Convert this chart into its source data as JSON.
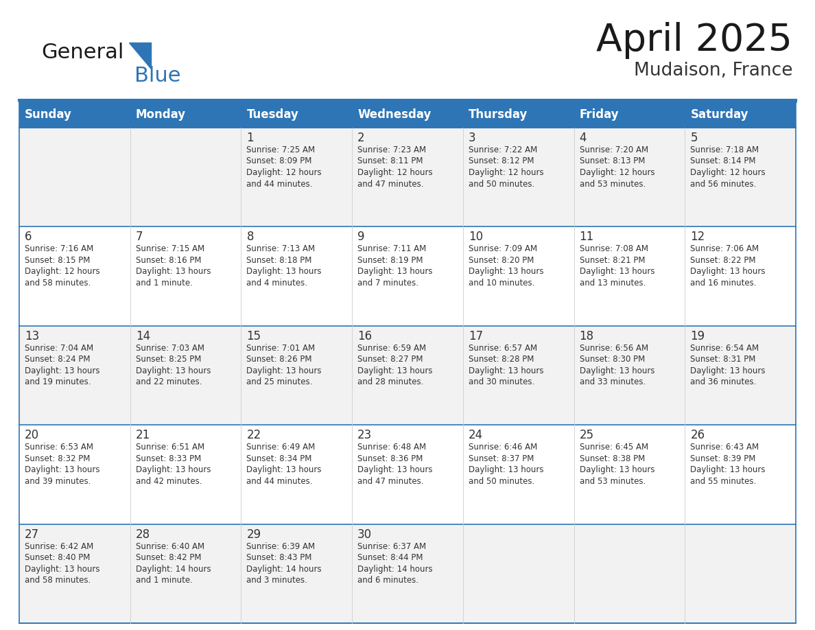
{
  "title": "April 2025",
  "subtitle": "Mudaison, France",
  "header_bg_color": "#2E75B6",
  "header_text_color": "#FFFFFF",
  "row_bg_even": "#F2F2F2",
  "row_bg_odd": "#FFFFFF",
  "border_color": "#2E75B6",
  "cell_border_color": "#CCCCCC",
  "day_headers": [
    "Sunday",
    "Monday",
    "Tuesday",
    "Wednesday",
    "Thursday",
    "Friday",
    "Saturday"
  ],
  "cell_text_color": "#333333",
  "day_num_color": "#333333",
  "logo_text_color": "#1a1a1a",
  "logo_blue_color": "#2E75B6",
  "weeks": [
    [
      {
        "day": "",
        "info": ""
      },
      {
        "day": "",
        "info": ""
      },
      {
        "day": "1",
        "info": "Sunrise: 7:25 AM\nSunset: 8:09 PM\nDaylight: 12 hours\nand 44 minutes."
      },
      {
        "day": "2",
        "info": "Sunrise: 7:23 AM\nSunset: 8:11 PM\nDaylight: 12 hours\nand 47 minutes."
      },
      {
        "day": "3",
        "info": "Sunrise: 7:22 AM\nSunset: 8:12 PM\nDaylight: 12 hours\nand 50 minutes."
      },
      {
        "day": "4",
        "info": "Sunrise: 7:20 AM\nSunset: 8:13 PM\nDaylight: 12 hours\nand 53 minutes."
      },
      {
        "day": "5",
        "info": "Sunrise: 7:18 AM\nSunset: 8:14 PM\nDaylight: 12 hours\nand 56 minutes."
      }
    ],
    [
      {
        "day": "6",
        "info": "Sunrise: 7:16 AM\nSunset: 8:15 PM\nDaylight: 12 hours\nand 58 minutes."
      },
      {
        "day": "7",
        "info": "Sunrise: 7:15 AM\nSunset: 8:16 PM\nDaylight: 13 hours\nand 1 minute."
      },
      {
        "day": "8",
        "info": "Sunrise: 7:13 AM\nSunset: 8:18 PM\nDaylight: 13 hours\nand 4 minutes."
      },
      {
        "day": "9",
        "info": "Sunrise: 7:11 AM\nSunset: 8:19 PM\nDaylight: 13 hours\nand 7 minutes."
      },
      {
        "day": "10",
        "info": "Sunrise: 7:09 AM\nSunset: 8:20 PM\nDaylight: 13 hours\nand 10 minutes."
      },
      {
        "day": "11",
        "info": "Sunrise: 7:08 AM\nSunset: 8:21 PM\nDaylight: 13 hours\nand 13 minutes."
      },
      {
        "day": "12",
        "info": "Sunrise: 7:06 AM\nSunset: 8:22 PM\nDaylight: 13 hours\nand 16 minutes."
      }
    ],
    [
      {
        "day": "13",
        "info": "Sunrise: 7:04 AM\nSunset: 8:24 PM\nDaylight: 13 hours\nand 19 minutes."
      },
      {
        "day": "14",
        "info": "Sunrise: 7:03 AM\nSunset: 8:25 PM\nDaylight: 13 hours\nand 22 minutes."
      },
      {
        "day": "15",
        "info": "Sunrise: 7:01 AM\nSunset: 8:26 PM\nDaylight: 13 hours\nand 25 minutes."
      },
      {
        "day": "16",
        "info": "Sunrise: 6:59 AM\nSunset: 8:27 PM\nDaylight: 13 hours\nand 28 minutes."
      },
      {
        "day": "17",
        "info": "Sunrise: 6:57 AM\nSunset: 8:28 PM\nDaylight: 13 hours\nand 30 minutes."
      },
      {
        "day": "18",
        "info": "Sunrise: 6:56 AM\nSunset: 8:30 PM\nDaylight: 13 hours\nand 33 minutes."
      },
      {
        "day": "19",
        "info": "Sunrise: 6:54 AM\nSunset: 8:31 PM\nDaylight: 13 hours\nand 36 minutes."
      }
    ],
    [
      {
        "day": "20",
        "info": "Sunrise: 6:53 AM\nSunset: 8:32 PM\nDaylight: 13 hours\nand 39 minutes."
      },
      {
        "day": "21",
        "info": "Sunrise: 6:51 AM\nSunset: 8:33 PM\nDaylight: 13 hours\nand 42 minutes."
      },
      {
        "day": "22",
        "info": "Sunrise: 6:49 AM\nSunset: 8:34 PM\nDaylight: 13 hours\nand 44 minutes."
      },
      {
        "day": "23",
        "info": "Sunrise: 6:48 AM\nSunset: 8:36 PM\nDaylight: 13 hours\nand 47 minutes."
      },
      {
        "day": "24",
        "info": "Sunrise: 6:46 AM\nSunset: 8:37 PM\nDaylight: 13 hours\nand 50 minutes."
      },
      {
        "day": "25",
        "info": "Sunrise: 6:45 AM\nSunset: 8:38 PM\nDaylight: 13 hours\nand 53 minutes."
      },
      {
        "day": "26",
        "info": "Sunrise: 6:43 AM\nSunset: 8:39 PM\nDaylight: 13 hours\nand 55 minutes."
      }
    ],
    [
      {
        "day": "27",
        "info": "Sunrise: 6:42 AM\nSunset: 8:40 PM\nDaylight: 13 hours\nand 58 minutes."
      },
      {
        "day": "28",
        "info": "Sunrise: 6:40 AM\nSunset: 8:42 PM\nDaylight: 14 hours\nand 1 minute."
      },
      {
        "day": "29",
        "info": "Sunrise: 6:39 AM\nSunset: 8:43 PM\nDaylight: 14 hours\nand 3 minutes."
      },
      {
        "day": "30",
        "info": "Sunrise: 6:37 AM\nSunset: 8:44 PM\nDaylight: 14 hours\nand 6 minutes."
      },
      {
        "day": "",
        "info": ""
      },
      {
        "day": "",
        "info": ""
      },
      {
        "day": "",
        "info": ""
      }
    ]
  ]
}
